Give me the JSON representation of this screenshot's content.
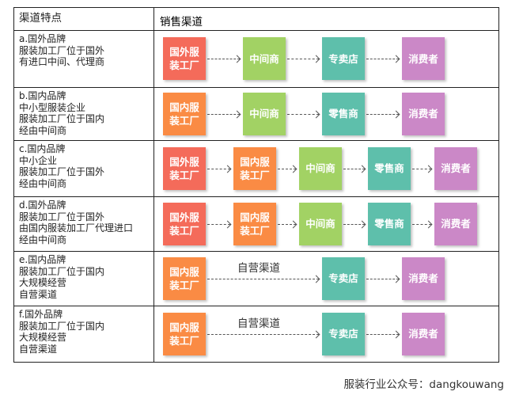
{
  "header": {
    "col1": "渠道特点",
    "col2": "销售渠道"
  },
  "colors": {
    "国外服装工厂": "#f46b5a",
    "国内服装工厂": "#fa8b44",
    "中间商": "#a2d264",
    "专卖店": "#5ebfab",
    "零售商": "#5ebfab",
    "消费者": "#cb88c7"
  },
  "rows": [
    {
      "desc": "a.国外品牌\n服装加工厂位于国外\n有进口中间、代理商",
      "chain": [
        "国外服装工厂",
        "中间商",
        "专卖店",
        "消费者"
      ]
    },
    {
      "desc": "b.国内品牌\n中小型服装企业\n服装加工厂位于国内\n经由中间商",
      "chain": [
        "国内服装工厂",
        "中间商",
        "零售商",
        "消费者"
      ]
    },
    {
      "desc": "c.国内品牌\n中小企业\n服装加工厂位于国外\n经由中间商",
      "chain": [
        "国外服装工厂",
        "国内服装工厂",
        "中间商",
        "零售商",
        "消费者"
      ]
    },
    {
      "desc": "d.国外品牌\n服装加工厂位于国外\n由国内服装加工厂代理进口\n经由中间商",
      "chain": [
        "国外服装工厂",
        "国内服装工厂",
        "中间商",
        "零售商",
        "消费者"
      ]
    },
    {
      "desc": "e.国内品牌\n服装加工厂位于国内\n大规模经营\n自营渠道",
      "chain": [
        "国内服装工厂",
        "专卖店",
        "消费者"
      ],
      "first_link_label": "自营渠道"
    },
    {
      "desc": "f.国外品牌\n服装加工厂位于国内\n大规模经营\n自营渠道",
      "chain": [
        "国内服装工厂",
        "专卖店",
        "消费者"
      ],
      "first_link_label": "自营渠道"
    }
  ],
  "footer": "服装行业公众号：dangkouwang"
}
